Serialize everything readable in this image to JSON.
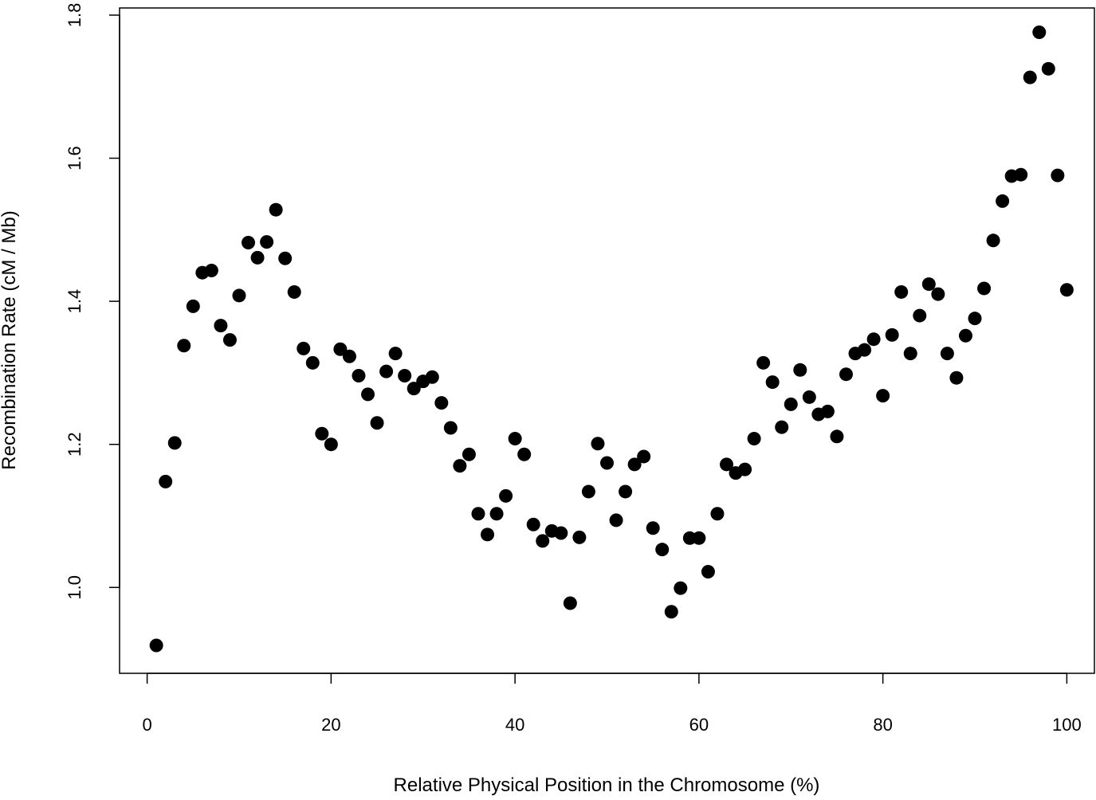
{
  "chart_data": {
    "type": "scatter",
    "title": "",
    "xlabel": "Relative Physical Position in the Chromosome (%)",
    "ylabel": "Recombination Rate (cM / Mb)",
    "xlim": [
      -3,
      103
    ],
    "ylim": [
      0.88,
      1.81
    ],
    "xticks": [
      0,
      20,
      40,
      60,
      80,
      100
    ],
    "xtick_labels": [
      "0",
      "20",
      "40",
      "60",
      "80",
      "100"
    ],
    "yticks": [
      1.0,
      1.2,
      1.4,
      1.6,
      1.8
    ],
    "ytick_labels": [
      "1.0",
      "1.2",
      "1.4",
      "1.6",
      "1.8"
    ],
    "grid": false,
    "marker_color": "#000000",
    "x": [
      1,
      2,
      3,
      4,
      5,
      6,
      7,
      8,
      9,
      10,
      11,
      12,
      13,
      14,
      15,
      16,
      17,
      18,
      19,
      20,
      21,
      22,
      23,
      24,
      25,
      26,
      27,
      28,
      29,
      30,
      31,
      32,
      33,
      34,
      35,
      36,
      37,
      38,
      39,
      40,
      41,
      42,
      43,
      44,
      45,
      46,
      47,
      48,
      49,
      50,
      51,
      52,
      53,
      54,
      55,
      56,
      57,
      58,
      59,
      60,
      61,
      62,
      63,
      64,
      65,
      66,
      67,
      68,
      69,
      70,
      71,
      72,
      73,
      74,
      75,
      76,
      77,
      78,
      79,
      80,
      81,
      82,
      83,
      84,
      85,
      86,
      87,
      88,
      89,
      90,
      91,
      92,
      93,
      94,
      95,
      96,
      97,
      98,
      99,
      100
    ],
    "y": [
      0.919,
      1.148,
      1.202,
      1.338,
      1.393,
      1.44,
      1.443,
      1.366,
      1.346,
      1.408,
      1.482,
      1.461,
      1.483,
      1.528,
      1.46,
      1.413,
      1.334,
      1.314,
      1.215,
      1.2,
      1.333,
      1.323,
      1.296,
      1.27,
      1.23,
      1.302,
      1.327,
      1.296,
      1.278,
      1.288,
      1.294,
      1.258,
      1.223,
      1.17,
      1.186,
      1.103,
      1.074,
      1.103,
      1.128,
      1.208,
      1.186,
      1.088,
      1.065,
      1.079,
      1.076,
      0.978,
      1.07,
      1.134,
      1.201,
      1.174,
      1.094,
      1.134,
      1.172,
      1.183,
      1.083,
      1.053,
      0.966,
      0.999,
      1.069,
      1.069,
      1.022,
      1.103,
      1.172,
      1.16,
      1.165,
      1.208,
      1.314,
      1.287,
      1.224,
      1.256,
      1.304,
      1.266,
      1.242,
      1.246,
      1.211,
      1.298,
      1.327,
      1.332,
      1.347,
      1.268,
      1.353,
      1.413,
      1.327,
      1.38,
      1.424,
      1.41,
      1.327,
      1.293,
      1.352,
      1.376,
      1.418,
      1.485,
      1.54,
      1.575,
      1.577,
      1.713,
      1.776,
      1.725,
      1.576,
      1.416
    ]
  }
}
